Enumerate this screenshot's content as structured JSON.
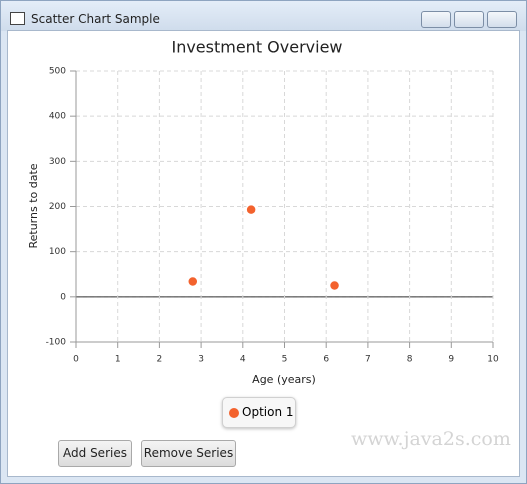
{
  "window": {
    "title": "Scatter Chart Sample"
  },
  "chart_data": {
    "type": "scatter",
    "title": "Investment Overview",
    "x_label": "Age (years)",
    "y_label": "Returns to date",
    "series": [
      {
        "name": "Option 1",
        "color": "#f3622d",
        "x": [
          2.8,
          4.2,
          6.2
        ],
        "values": [
          34,
          193,
          25
        ]
      }
    ],
    "xlim": [
      0,
      10
    ],
    "xticks": [
      0,
      1,
      2,
      3,
      4,
      5,
      6,
      7,
      8,
      9,
      10
    ],
    "ylim": [
      -100,
      500
    ],
    "yticks": [
      -100,
      0,
      100,
      200,
      300,
      400,
      500
    ],
    "grid": true,
    "legend": "bottom"
  },
  "buttons": [
    "Add Series",
    "Remove Series"
  ],
  "watermark": "www.java2s.com"
}
